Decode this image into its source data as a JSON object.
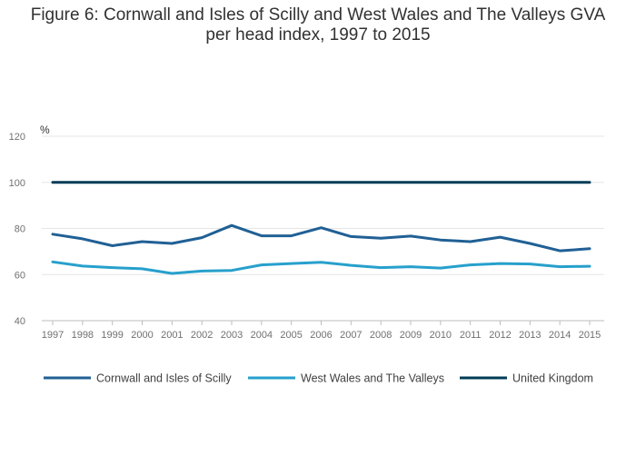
{
  "title_line1": "Figure 6: Cornwall and Isles of Scilly and West Wales and The Valleys GVA",
  "title_line2": "per head index, 1997 to 2015",
  "chart_data": {
    "type": "line",
    "title": "Figure 6: Cornwall and Isles of Scilly and West Wales and The Valleys GVA per head index, 1997 to 2015",
    "xlabel": "",
    "ylabel": "%",
    "x": [
      "1997",
      "1998",
      "1999",
      "2000",
      "2001",
      "2002",
      "2003",
      "2004",
      "2005",
      "2006",
      "2007",
      "2008",
      "2009",
      "2010",
      "2011",
      "2012",
      "2013",
      "2014",
      "2015"
    ],
    "ylim": [
      40,
      120
    ],
    "yticks": [
      "40",
      "60",
      "80",
      "100",
      "120"
    ],
    "grid": true,
    "legend_position": "bottom",
    "series": [
      {
        "name": "Cornwall and Isles of Scilly",
        "color": "#206095",
        "values": [
          77.5,
          75.5,
          72.5,
          74.3,
          73.5,
          76.0,
          81.3,
          76.8,
          76.8,
          80.3,
          76.5,
          75.8,
          76.7,
          75.0,
          74.3,
          76.2,
          73.5,
          70.3,
          71.2
        ]
      },
      {
        "name": "West Wales and The Valleys",
        "color": "#27a0cc",
        "values": [
          65.5,
          63.7,
          63.0,
          62.5,
          60.5,
          61.5,
          61.8,
          64.2,
          64.8,
          65.3,
          64.0,
          63.0,
          63.4,
          62.8,
          64.2,
          64.8,
          64.6,
          63.4,
          63.6
        ]
      },
      {
        "name": "United Kingdom",
        "color": "#003c57",
        "values": [
          100,
          100,
          100,
          100,
          100,
          100,
          100,
          100,
          100,
          100,
          100,
          100,
          100,
          100,
          100,
          100,
          100,
          100,
          100
        ]
      }
    ]
  }
}
